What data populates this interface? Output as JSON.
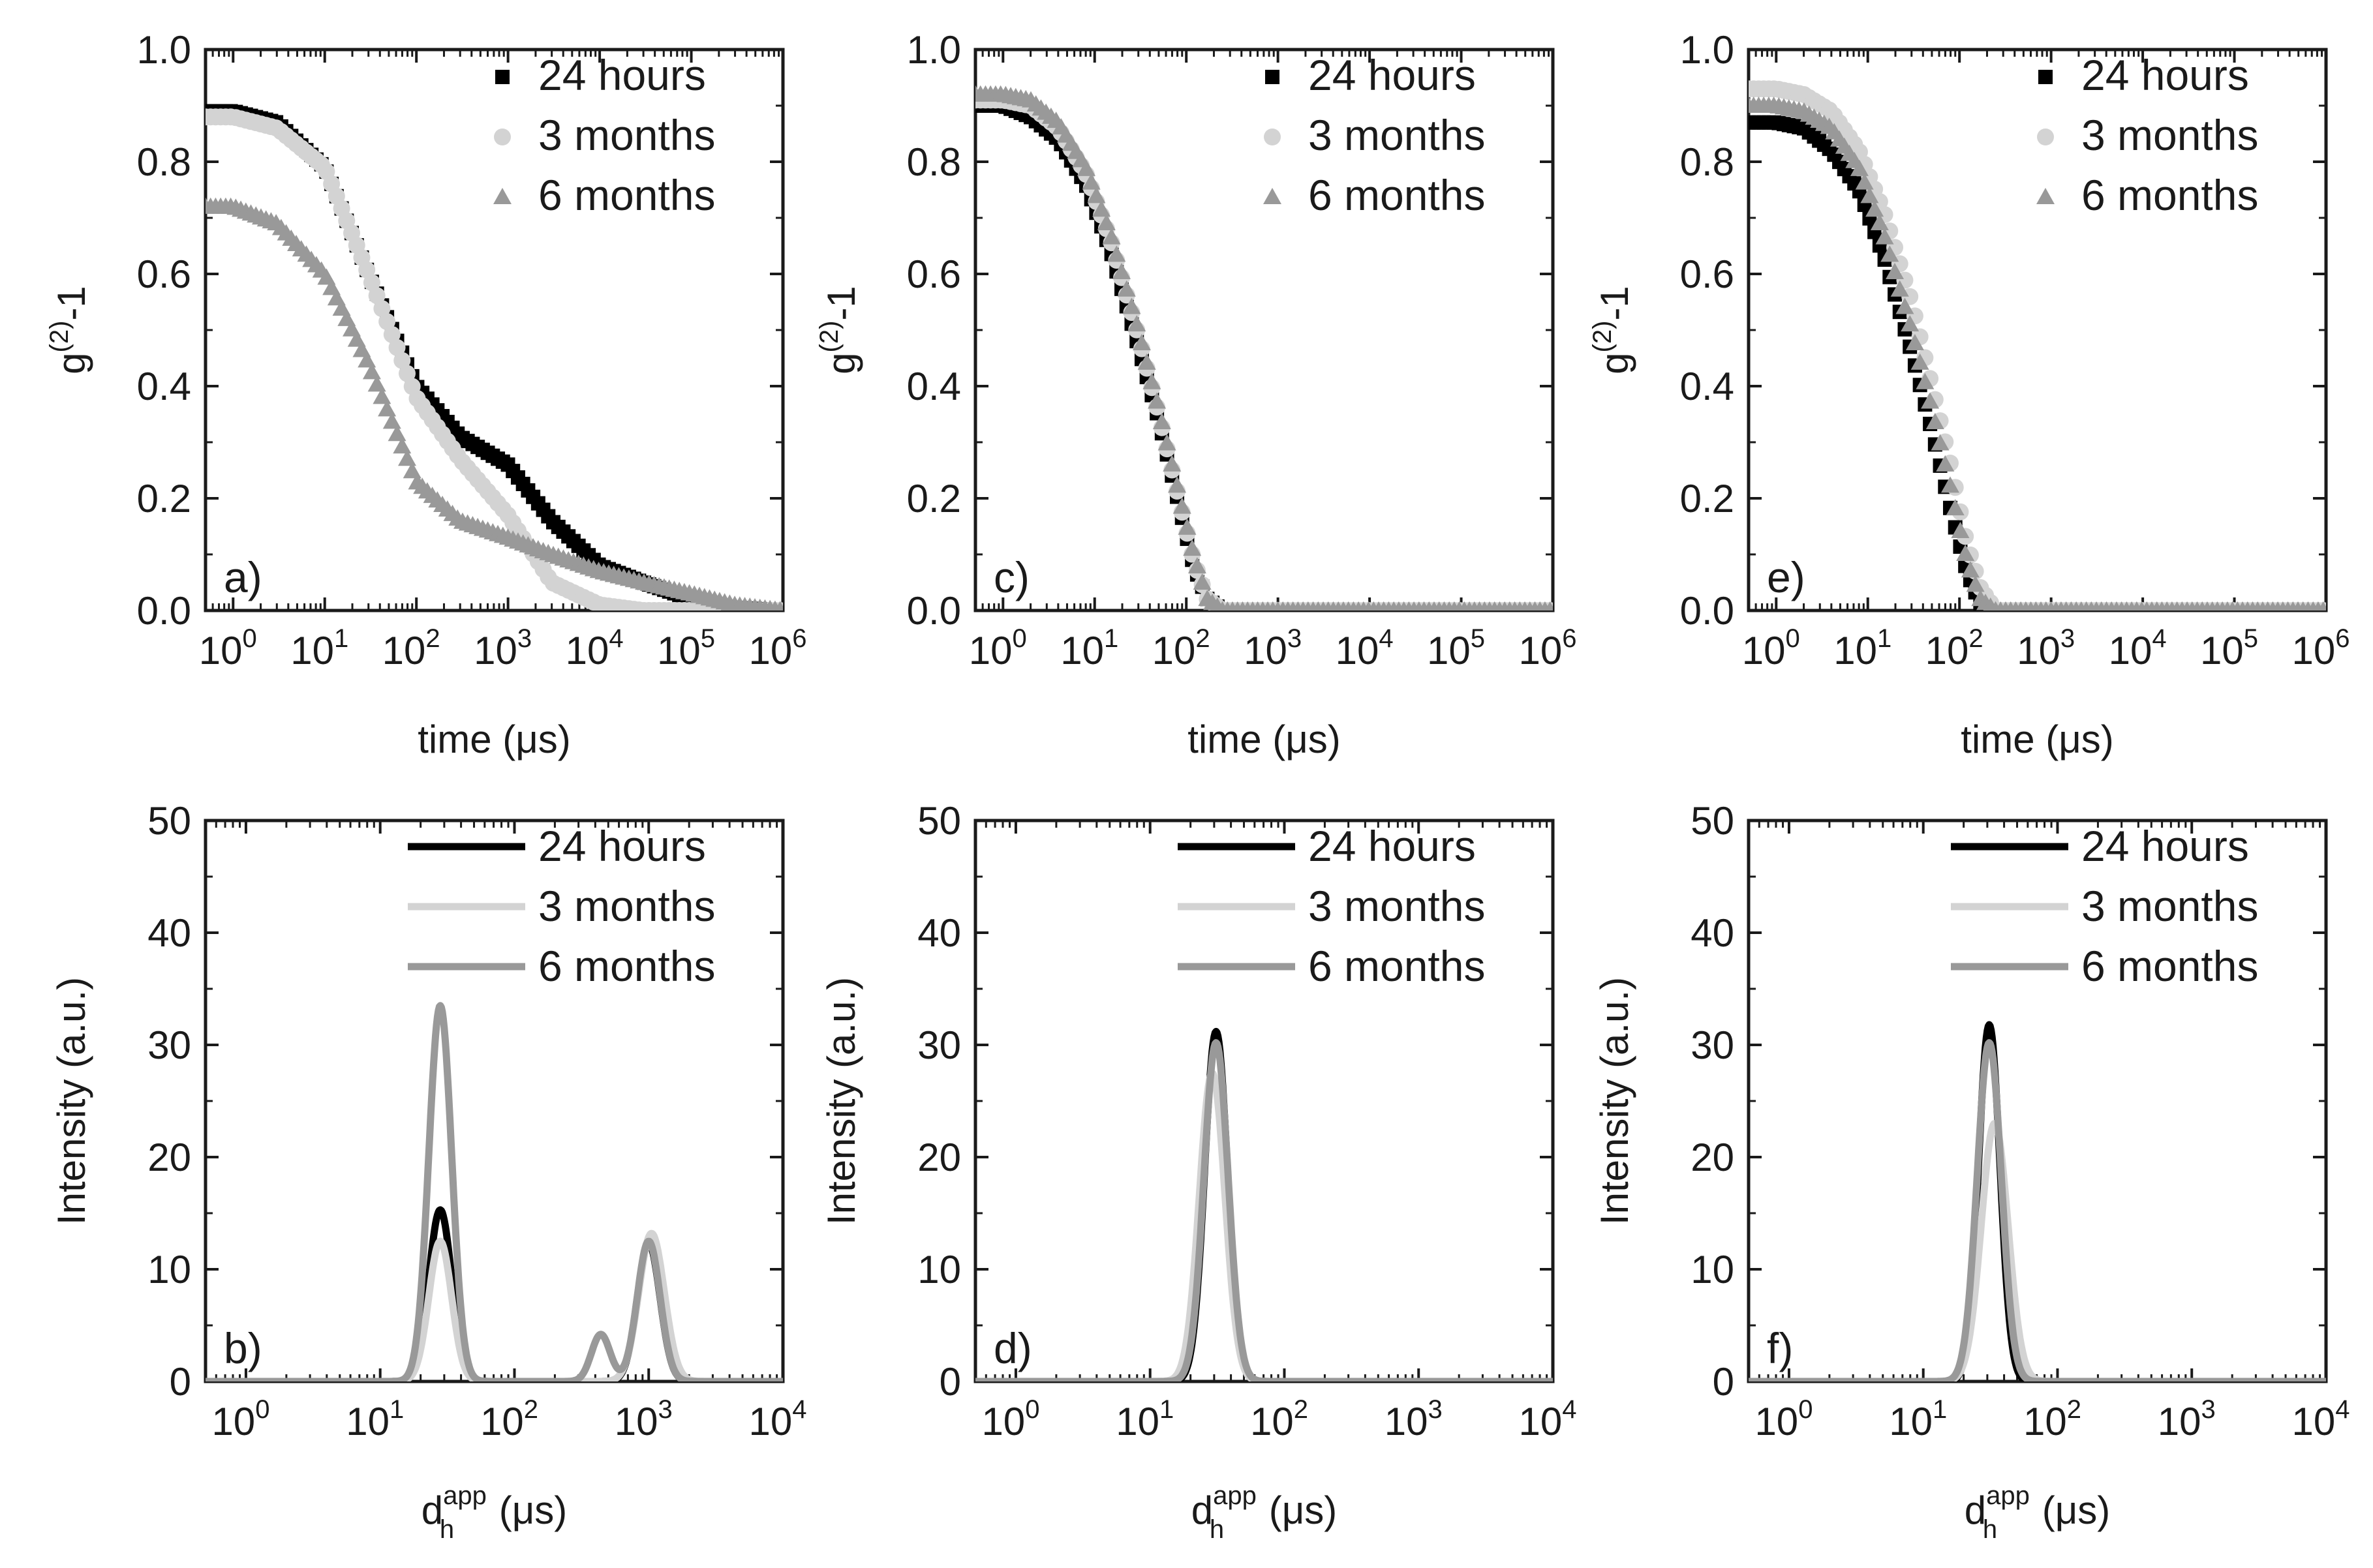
{
  "figure": {
    "caption": ""
  },
  "chart_data": [
    {
      "id": "a",
      "type": "scatter",
      "panel_label": "a)",
      "xlabel": "time (μs)",
      "ylabel": "g(2)-1",
      "xscale": "log",
      "xlim": [
        0.5,
        1000000
      ],
      "ylim": [
        0,
        1.0
      ],
      "x_ticks": [
        1,
        10,
        100,
        1000,
        10000,
        100000,
        1000000
      ],
      "x_tick_labels": [
        "10^0",
        "10^1",
        "10^2",
        "10^3",
        "10^4",
        "10^5",
        "10^6"
      ],
      "y_ticks": [
        0,
        0.2,
        0.4,
        0.6,
        0.8,
        1.0
      ],
      "y_tick_labels": [
        "0.0",
        "0.2",
        "0.4",
        "0.6",
        "0.8",
        "1.0"
      ],
      "legend_position": "top-right",
      "series": [
        {
          "name": "24 hours",
          "marker": "square",
          "color": "#000000",
          "x": [
            0.5,
            1,
            3,
            10,
            30,
            100,
            300,
            1000,
            3000,
            10000,
            30000,
            100000,
            300000,
            1000000
          ],
          "y": [
            0.89,
            0.89,
            0.87,
            0.79,
            0.6,
            0.4,
            0.31,
            0.26,
            0.16,
            0.08,
            0.05,
            0.02,
            0.005,
            0
          ]
        },
        {
          "name": "3 months",
          "marker": "circle",
          "color": "#d3d3d3",
          "x": [
            0.5,
            1,
            3,
            10,
            30,
            100,
            300,
            1000,
            3000,
            10000,
            30000,
            100000,
            1000000
          ],
          "y": [
            0.88,
            0.88,
            0.86,
            0.79,
            0.6,
            0.38,
            0.27,
            0.17,
            0.05,
            0.01,
            0,
            0,
            0
          ]
        },
        {
          "name": "6 months",
          "marker": "triangle",
          "color": "#999999",
          "x": [
            0.5,
            1,
            3,
            10,
            30,
            100,
            300,
            1000,
            3000,
            10000,
            30000,
            100000,
            300000,
            1000000
          ],
          "y": [
            0.72,
            0.72,
            0.69,
            0.6,
            0.44,
            0.23,
            0.16,
            0.13,
            0.1,
            0.07,
            0.05,
            0.03,
            0.01,
            0
          ]
        }
      ]
    },
    {
      "id": "b",
      "type": "line",
      "panel_label": "b)",
      "xlabel": "dh app (μs)",
      "ylabel": "Intensity (a.u.)",
      "xscale": "log",
      "xlim": [
        0.5,
        10000
      ],
      "ylim": [
        0,
        50
      ],
      "x_ticks": [
        1,
        10,
        100,
        1000,
        10000
      ],
      "x_tick_labels": [
        "10^0",
        "10^1",
        "10^2",
        "10^3",
        "10^4"
      ],
      "y_ticks": [
        0,
        10,
        20,
        30,
        40,
        50
      ],
      "y_tick_labels": [
        "0",
        "10",
        "20",
        "30",
        "40",
        "50"
      ],
      "legend_position": "top-right",
      "series": [
        {
          "name": "24 hours",
          "color": "#000000",
          "peaks": [
            {
              "center": 28,
              "height": 15.3,
              "width": 0.085
            },
            {
              "center": 1000,
              "height": 12.3,
              "width": 0.085
            }
          ]
        },
        {
          "name": "3 months",
          "color": "#d3d3d3",
          "peaks": [
            {
              "center": 28,
              "height": 12.5,
              "width": 0.085
            },
            {
              "center": 1050,
              "height": 13.2,
              "width": 0.095
            }
          ]
        },
        {
          "name": "6 months",
          "color": "#999999",
          "peaks": [
            {
              "center": 28,
              "height": 33.5,
              "width": 0.085
            },
            {
              "center": 440,
              "height": 4.2,
              "width": 0.07
            },
            {
              "center": 1000,
              "height": 12.5,
              "width": 0.085
            }
          ]
        }
      ]
    },
    {
      "id": "c",
      "type": "scatter",
      "panel_label": "c)",
      "xlabel": "time (μs)",
      "ylabel": "g(2)-1",
      "xscale": "log",
      "xlim": [
        0.5,
        1000000
      ],
      "ylim": [
        0,
        1.0
      ],
      "x_ticks": [
        1,
        10,
        100,
        1000,
        10000,
        100000,
        1000000
      ],
      "x_tick_labels": [
        "10^0",
        "10^1",
        "10^2",
        "10^3",
        "10^4",
        "10^5",
        "10^6"
      ],
      "y_ticks": [
        0,
        0.2,
        0.4,
        0.6,
        0.8,
        1.0
      ],
      "y_tick_labels": [
        "0.0",
        "0.2",
        "0.4",
        "0.6",
        "0.8",
        "1.0"
      ],
      "legend_position": "top-right",
      "series": [
        {
          "name": "24 hours",
          "marker": "square",
          "color": "#000000",
          "x": [
            0.5,
            1,
            2,
            4,
            8,
            15,
            30,
            50,
            80,
            120,
            170,
            250,
            1000,
            1000000
          ],
          "y": [
            0.9,
            0.9,
            0.88,
            0.84,
            0.76,
            0.64,
            0.47,
            0.34,
            0.2,
            0.08,
            0.02,
            0,
            0,
            0
          ]
        },
        {
          "name": "3 months",
          "marker": "circle",
          "color": "#d3d3d3",
          "x": [
            0.5,
            1,
            2,
            4,
            8,
            15,
            30,
            50,
            80,
            120,
            170,
            250,
            1000,
            1000000
          ],
          "y": [
            0.91,
            0.91,
            0.9,
            0.86,
            0.78,
            0.66,
            0.49,
            0.35,
            0.21,
            0.09,
            0.02,
            0,
            0,
            0
          ]
        },
        {
          "name": "6 months",
          "marker": "triangle",
          "color": "#999999",
          "x": [
            0.5,
            1,
            2,
            4,
            8,
            15,
            30,
            50,
            80,
            120,
            170,
            250,
            1000,
            1000000
          ],
          "y": [
            0.92,
            0.92,
            0.91,
            0.87,
            0.79,
            0.67,
            0.5,
            0.36,
            0.22,
            0.1,
            0.02,
            0,
            0,
            0
          ]
        }
      ]
    },
    {
      "id": "d",
      "type": "line",
      "panel_label": "d)",
      "xlabel": "dh app (μs)",
      "ylabel": "Intensity (a.u.)",
      "xscale": "log",
      "xlim": [
        0.5,
        10000
      ],
      "ylim": [
        0,
        50
      ],
      "x_ticks": [
        1,
        10,
        100,
        1000,
        10000
      ],
      "x_tick_labels": [
        "10^0",
        "10^1",
        "10^2",
        "10^3",
        "10^4"
      ],
      "y_ticks": [
        0,
        10,
        20,
        30,
        40,
        50
      ],
      "y_tick_labels": [
        "0",
        "10",
        "20",
        "30",
        "40",
        "50"
      ],
      "legend_position": "top-right",
      "series": [
        {
          "name": "24 hours",
          "color": "#000000",
          "peaks": [
            {
              "center": 31,
              "height": 31.2,
              "width": 0.085
            }
          ]
        },
        {
          "name": "3 months",
          "color": "#d3d3d3",
          "peaks": [
            {
              "center": 29,
              "height": 27.5,
              "width": 0.095
            }
          ]
        },
        {
          "name": "6 months",
          "color": "#999999",
          "peaks": [
            {
              "center": 31,
              "height": 30.2,
              "width": 0.09
            }
          ]
        }
      ]
    },
    {
      "id": "e",
      "type": "scatter",
      "panel_label": "e)",
      "xlabel": "time (μs)",
      "ylabel": "g(2)-1",
      "xscale": "log",
      "xlim": [
        0.5,
        1000000
      ],
      "ylim": [
        0,
        1.0
      ],
      "x_ticks": [
        1,
        10,
        100,
        1000,
        10000,
        100000,
        1000000
      ],
      "x_tick_labels": [
        "10^0",
        "10^1",
        "10^2",
        "10^3",
        "10^4",
        "10^5",
        "10^6"
      ],
      "y_ticks": [
        0,
        0.2,
        0.4,
        0.6,
        0.8,
        1.0
      ],
      "y_tick_labels": [
        "0.0",
        "0.2",
        "0.4",
        "0.6",
        "0.8",
        "1.0"
      ],
      "legend_position": "top-right",
      "series": [
        {
          "name": "24 hours",
          "marker": "square",
          "color": "#000000",
          "x": [
            0.5,
            1,
            2,
            4,
            8,
            15,
            30,
            50,
            80,
            120,
            170,
            250,
            1000,
            1000000
          ],
          "y": [
            0.87,
            0.87,
            0.86,
            0.82,
            0.75,
            0.63,
            0.46,
            0.32,
            0.18,
            0.07,
            0.01,
            0,
            0,
            0
          ]
        },
        {
          "name": "3 months",
          "marker": "circle",
          "color": "#d3d3d3",
          "x": [
            0.5,
            1,
            2,
            4,
            8,
            15,
            30,
            50,
            80,
            120,
            170,
            250,
            1000,
            1000000
          ],
          "y": [
            0.93,
            0.93,
            0.92,
            0.89,
            0.82,
            0.71,
            0.55,
            0.4,
            0.26,
            0.12,
            0.04,
            0,
            0,
            0
          ]
        },
        {
          "name": "6 months",
          "marker": "triangle",
          "color": "#999999",
          "x": [
            0.5,
            1,
            2,
            4,
            8,
            15,
            30,
            50,
            80,
            120,
            170,
            250,
            1000,
            1000000
          ],
          "y": [
            0.9,
            0.9,
            0.89,
            0.86,
            0.79,
            0.67,
            0.5,
            0.36,
            0.22,
            0.09,
            0.02,
            0,
            0,
            0
          ]
        }
      ]
    },
    {
      "id": "f",
      "type": "line",
      "panel_label": "f)",
      "xlabel": "dh app (μs)",
      "ylabel": "Intensity (a.u.)",
      "xscale": "log",
      "xlim": [
        0.5,
        10000
      ],
      "ylim": [
        0,
        50
      ],
      "x_ticks": [
        1,
        10,
        100,
        1000,
        10000
      ],
      "x_tick_labels": [
        "10^0",
        "10^1",
        "10^2",
        "10^3",
        "10^4"
      ],
      "y_ticks": [
        0,
        10,
        20,
        30,
        40,
        50
      ],
      "y_tick_labels": [
        "0",
        "10",
        "20",
        "30",
        "40",
        "50"
      ],
      "legend_position": "top-right",
      "series": [
        {
          "name": "24 hours",
          "color": "#000000",
          "peaks": [
            {
              "center": 31,
              "height": 31.8,
              "width": 0.08
            }
          ]
        },
        {
          "name": "3 months",
          "color": "#d3d3d3",
          "peaks": [
            {
              "center": 34,
              "height": 23.0,
              "width": 0.1
            }
          ]
        },
        {
          "name": "6 months",
          "color": "#999999",
          "peaks": [
            {
              "center": 31,
              "height": 30.2,
              "width": 0.09
            }
          ]
        }
      ]
    }
  ]
}
